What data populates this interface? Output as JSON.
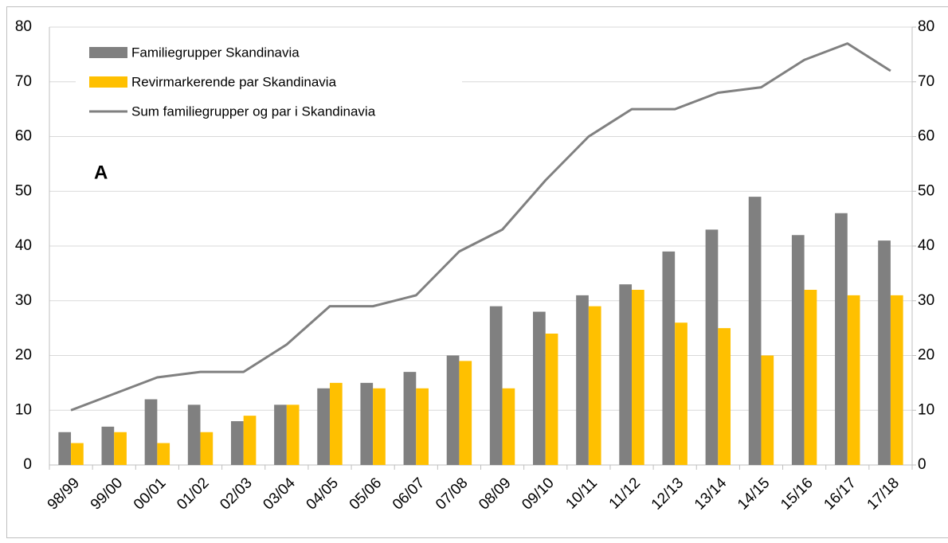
{
  "chart_data": {
    "type": "bar",
    "annotation": "A",
    "categories": [
      "98/99",
      "99/00",
      "00/01",
      "01/02",
      "02/03",
      "03/04",
      "04/05",
      "05/06",
      "06/07",
      "07/08",
      "08/09",
      "09/10",
      "10/11",
      "11/12",
      "12/13",
      "13/14",
      "14/15",
      "15/16",
      "16/17",
      "17/18"
    ],
    "series": [
      {
        "name": "Familiegrupper Skandinavia",
        "type": "bar",
        "color": "#808080",
        "values": [
          6,
          7,
          12,
          11,
          8,
          11,
          14,
          15,
          17,
          20,
          29,
          28,
          31,
          33,
          39,
          43,
          49,
          42,
          46,
          41
        ]
      },
      {
        "name": "Revirmarkerende par Skandinavia",
        "type": "bar",
        "color": "#ffc000",
        "values": [
          4,
          6,
          4,
          6,
          9,
          11,
          15,
          14,
          14,
          19,
          14,
          24,
          29,
          32,
          26,
          25,
          20,
          32,
          31,
          31
        ]
      },
      {
        "name": "Sum familiegrupper og par i Skandinavia",
        "type": "line",
        "axis": "y2",
        "color": "#808080",
        "values": [
          10,
          13,
          16,
          17,
          17,
          22,
          29,
          29,
          31,
          39,
          43,
          52,
          60,
          65,
          65,
          68,
          69,
          74,
          77,
          72
        ]
      }
    ],
    "ylim": [
      0,
      80
    ],
    "yticks": [
      0,
      10,
      20,
      30,
      40,
      50,
      60,
      70,
      80
    ],
    "y2lim": [
      0,
      80
    ],
    "y2ticks": [
      0,
      10,
      20,
      30,
      40,
      50,
      60,
      70,
      80
    ],
    "grid": true,
    "legend": "upper left"
  }
}
